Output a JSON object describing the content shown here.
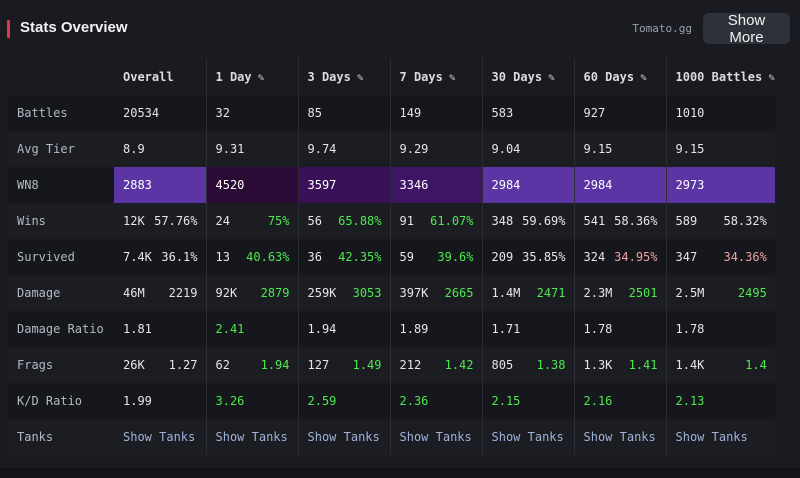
{
  "header": {
    "title": "Stats Overview",
    "source": "Tomato.gg",
    "show_more_label": "Show More",
    "accent_color": "#e0384a"
  },
  "columns": [
    {
      "label": "Overall",
      "editable": false
    },
    {
      "label": "1 Day",
      "editable": true
    },
    {
      "label": "3 Days",
      "editable": true
    },
    {
      "label": "7 Days",
      "editable": true
    },
    {
      "label": "30 Days",
      "editable": true
    },
    {
      "label": "60 Days",
      "editable": true
    },
    {
      "label": "1000 Battles",
      "editable": true
    }
  ],
  "edit_icon": "pencil-icon",
  "rows": {
    "battles": {
      "label": "Battles",
      "values": [
        "20534",
        "32",
        "85",
        "149",
        "583",
        "927",
        "1010"
      ]
    },
    "avg_tier": {
      "label": "Avg Tier",
      "values": [
        "8.9",
        "9.31",
        "9.74",
        "9.29",
        "9.04",
        "9.15",
        "9.15"
      ]
    },
    "wn8": {
      "label": "WN8",
      "values": [
        "2883",
        "4520",
        "3597",
        "3346",
        "2984",
        "2984",
        "2973"
      ],
      "colors": [
        "#5b35a3",
        "#2c0a36",
        "#3a1158",
        "#3f1466",
        "#5b35a3",
        "#5b35a3",
        "#5b35a3"
      ]
    },
    "wins": {
      "label": "Wins",
      "counts": [
        "12K",
        "24",
        "56",
        "91",
        "348",
        "541",
        "589"
      ],
      "rates": [
        "57.76%",
        "75%",
        "65.88%",
        "61.07%",
        "59.69%",
        "58.36%",
        "58.32%"
      ],
      "rate_colors": [
        "white",
        "green",
        "green",
        "green",
        "white",
        "white",
        "white"
      ]
    },
    "survived": {
      "label": "Survived",
      "counts": [
        "7.4K",
        "13",
        "36",
        "59",
        "209",
        "324",
        "347"
      ],
      "rates": [
        "36.1%",
        "40.63%",
        "42.35%",
        "39.6%",
        "35.85%",
        "34.95%",
        "34.36%"
      ],
      "rate_colors": [
        "white",
        "green",
        "green",
        "green",
        "white",
        "red",
        "red"
      ]
    },
    "damage": {
      "label": "Damage",
      "totals": [
        "46M",
        "92K",
        "259K",
        "397K",
        "1.4M",
        "2.3M",
        "2.5M"
      ],
      "averages": [
        "2219",
        "2879",
        "3053",
        "2665",
        "2471",
        "2501",
        "2495"
      ],
      "avg_colors": [
        "white",
        "green",
        "green",
        "green",
        "green",
        "green",
        "green"
      ]
    },
    "damage_ratio": {
      "label": "Damage Ratio",
      "values": [
        "1.81",
        "2.41",
        "1.94",
        "1.89",
        "1.71",
        "1.78",
        "1.78"
      ],
      "value_colors": [
        "white",
        "green",
        "white",
        "white",
        "white",
        "white",
        "white"
      ]
    },
    "frags": {
      "label": "Frags",
      "totals": [
        "26K",
        "62",
        "127",
        "212",
        "805",
        "1.3K",
        "1.4K"
      ],
      "averages": [
        "1.27",
        "1.94",
        "1.49",
        "1.42",
        "1.38",
        "1.41",
        "1.4"
      ],
      "avg_colors": [
        "white",
        "green",
        "green",
        "green",
        "green",
        "green",
        "green"
      ]
    },
    "kd_ratio": {
      "label": "K/D Ratio",
      "values": [
        "1.99",
        "3.26",
        "2.59",
        "2.36",
        "2.15",
        "2.16",
        "2.13"
      ],
      "value_colors": [
        "white",
        "green",
        "green",
        "green",
        "green",
        "green",
        "green"
      ]
    },
    "tanks": {
      "label": "Tanks",
      "link_label": "Show Tanks"
    }
  }
}
